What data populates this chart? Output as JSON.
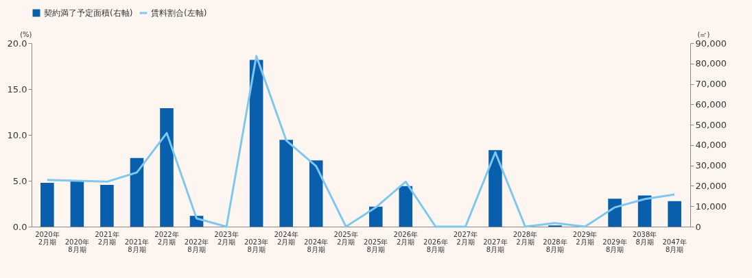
{
  "chart_data": {
    "type": "bar",
    "categories": [
      "2020年2月期",
      "2020年8月期",
      "2021年2月期",
      "2021年8月期",
      "2022年2月期",
      "2022年8月期",
      "2023年2月期",
      "2023年8月期",
      "2024年2月期",
      "2024年8月期",
      "2025年2月期",
      "2025年8月期",
      "2026年2月期",
      "2026年8月期",
      "2027年2月期",
      "2027年8月期",
      "2028年2月期",
      "2028年8月期",
      "2029年2月期",
      "2029年8月期",
      "2038年8月期",
      "2047年8月期"
    ],
    "series": [
      {
        "name": "賃料割合(左軸)",
        "type": "line",
        "color": "#7ec8ee",
        "values": [
          5.1,
          5.0,
          4.9,
          5.9,
          10.2,
          0.9,
          0.0,
          18.6,
          9.4,
          6.6,
          0.0,
          2.1,
          4.9,
          0.0,
          0.0,
          8.1,
          0.0,
          0.4,
          0.0,
          2.1,
          3.0,
          3.5
        ]
      },
      {
        "name": "契約満了予定面積(右軸)",
        "axis": "y2",
        "color": "#0a5fad",
        "values": [
          21500,
          22300,
          20500,
          33700,
          58100,
          5300,
          0,
          81800,
          42600,
          32500,
          0,
          9800,
          19900,
          0,
          0,
          37500,
          0,
          600,
          0,
          13700,
          15300,
          12500
        ]
      }
    ],
    "ylabel": "(%)",
    "y2label": "(㎡)",
    "ylim": [
      0,
      20
    ],
    "yticks": [
      {
        "value": 0,
        "label": "0.0"
      },
      {
        "value": 5,
        "label": "5.0"
      },
      {
        "value": 10,
        "label": "10.0"
      },
      {
        "value": 15,
        "label": "15.0"
      },
      {
        "value": 20,
        "label": "20.0"
      }
    ],
    "y2lim": [
      0,
      90000
    ],
    "y2ticks": [
      0,
      {
        "value": 10000,
        "label": "10,000"
      },
      {
        "value": 20000,
        "label": "20,000"
      },
      {
        "value": 30000,
        "label": "30,000"
      },
      {
        "value": 40000,
        "label": "40,000"
      },
      {
        "value": 50000,
        "label": "50,000"
      },
      {
        "value": 60000,
        "label": "60,000"
      },
      {
        "value": 70000,
        "label": "70,000"
      },
      {
        "value": 80000,
        "label": "80,000"
      },
      {
        "value": 90000,
        "label": "90,000"
      }
    ],
    "legend": "top left",
    "grid": false
  }
}
